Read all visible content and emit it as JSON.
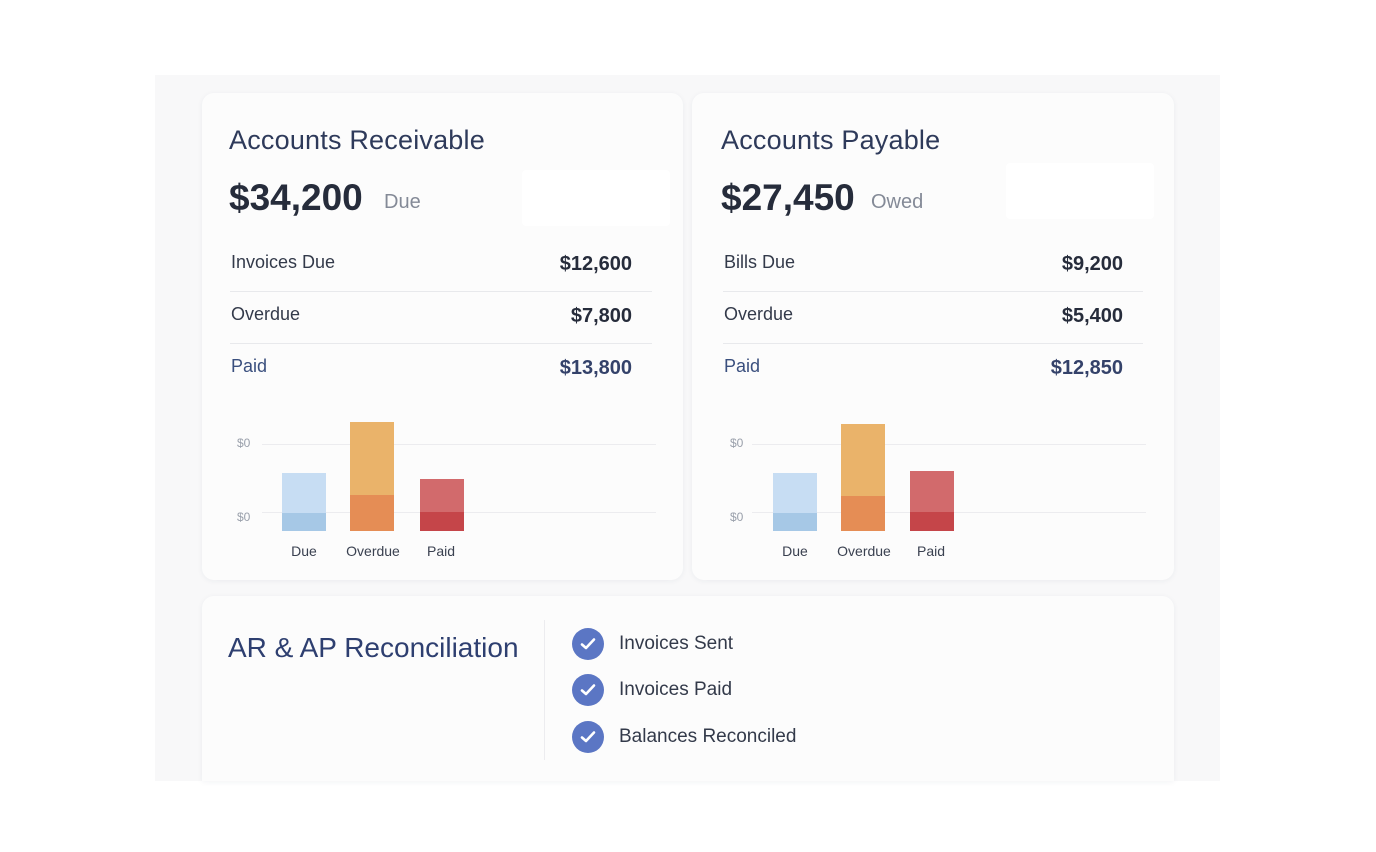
{
  "receivable": {
    "title": "Accounts Receivable",
    "amount": "$34,200",
    "amount_suffix": "Due",
    "rows": [
      {
        "label": "Invoices Due",
        "value": "$12,600"
      },
      {
        "label": "Overdue",
        "value": "$7,800"
      },
      {
        "label": "Paid",
        "value": "$13,800"
      }
    ],
    "chart": {
      "y_ticks": [
        "$0",
        "$0"
      ],
      "categories": [
        "Due",
        "Overdue",
        "Paid"
      ]
    }
  },
  "payable": {
    "title": "Accounts Payable",
    "amount": "$27,450",
    "amount_suffix": "Owed",
    "rows": [
      {
        "label": "Bills Due",
        "value": "$9,200"
      },
      {
        "label": "Overdue",
        "value": "$5,400"
      },
      {
        "label": "Paid",
        "value": "$12,850"
      }
    ],
    "chart": {
      "y_ticks": [
        "$0",
        "$0"
      ],
      "categories": [
        "Due",
        "Overdue",
        "Paid"
      ]
    }
  },
  "reconciliation": {
    "title": "AR & AP Reconciliation",
    "items": [
      {
        "label": "Invoices Sent",
        "icon": "check-circle-icon"
      },
      {
        "label": "Invoices Paid",
        "icon": "check-circle-icon"
      },
      {
        "label": "Balances Reconciled",
        "icon": "check-circle-icon"
      }
    ]
  },
  "colors": {
    "due_light": "#c7ddf3",
    "due_dark": "#a6c8e6",
    "overdue_light": "#eab36a",
    "overdue_dark": "#e58d55",
    "paid_light": "#d26a6c",
    "paid_dark": "#c54549",
    "check": "#5b76c4"
  }
}
